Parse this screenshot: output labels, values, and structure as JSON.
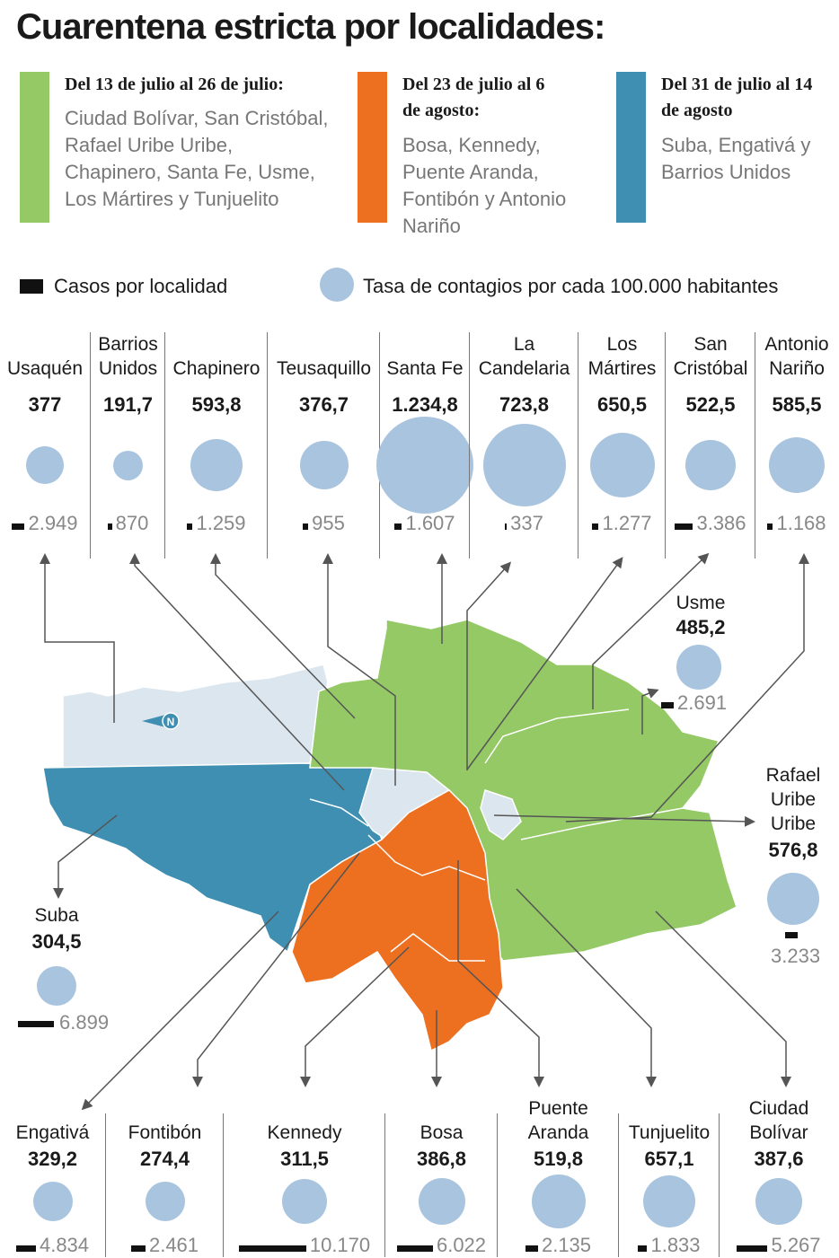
{
  "title": "Cuarentena estricta por localidades:",
  "periods": [
    {
      "date": "Del 13 de julio al 26 de julio:",
      "body": "Ciudad Bolívar, San Cristóbal, Rafael Uribe Uribe, Chapinero, Santa Fe, Usme, Los Mártires y Tunjuelito",
      "color": "#94c966"
    },
    {
      "date": "Del 23 de julio al 6 de agosto:",
      "body": "Bosa, Kennedy, Puente Aranda, Fontibón y Antonio Nariño",
      "color": "#ec7020"
    },
    {
      "date": "Del 31 de julio al 14 de agosto",
      "body": "Suba, Engativá y Barrios Unidos",
      "color": "#3e8fb1"
    }
  ],
  "legend": {
    "cases": "Casos por localidad",
    "rate": "Tasa de contagios por cada 100.000 habitantes"
  },
  "colors": {
    "circle": "#a9c4de",
    "green": "#94c966",
    "orange": "#ec7020",
    "blue": "#3e8fb1",
    "gray": "#dce6ee"
  },
  "top_localities": [
    {
      "name": "Usaquén",
      "rate": "377",
      "cases": "2.949"
    },
    {
      "name": "Barrios Unidos",
      "rate": "191,7",
      "cases": "870"
    },
    {
      "name": "Chapinero",
      "rate": "593,8",
      "cases": "1.259"
    },
    {
      "name": "Teusaquillo",
      "rate": "376,7",
      "cases": "955"
    },
    {
      "name": "Santa Fe",
      "rate": "1.234,8",
      "cases": "1.607"
    },
    {
      "name": "La Candelaria",
      "rate": "723,8",
      "cases": "337"
    },
    {
      "name": "Los Mártires",
      "rate": "650,5",
      "cases": "1.277"
    },
    {
      "name": "San Cristóbal",
      "rate": "522,5",
      "cases": "3.386"
    },
    {
      "name": "Antonio Nariño",
      "rate": "585,5",
      "cases": "1.168"
    }
  ],
  "side_localities": {
    "usme": {
      "name": "Usme",
      "rate": "485,2",
      "cases": "2.691"
    },
    "rafael": {
      "name": "Rafael Uribe Uribe",
      "rate": "576,8",
      "cases": "3.233"
    },
    "suba": {
      "name": "Suba",
      "rate": "304,5",
      "cases": "6.899"
    }
  },
  "bottom_localities": [
    {
      "name": "Engativá",
      "rate": "329,2",
      "cases": "4.834"
    },
    {
      "name": "Fontibón",
      "rate": "274,4",
      "cases": "2.461"
    },
    {
      "name": "Kennedy",
      "rate": "311,5",
      "cases": "10.170"
    },
    {
      "name": "Bosa",
      "rate": "386,8",
      "cases": "6.022"
    },
    {
      "name": "Puente Aranda",
      "rate": "519,8",
      "cases": "2.135"
    },
    {
      "name": "Tunjuelito",
      "rate": "657,1",
      "cases": "1.833"
    },
    {
      "name": "Ciudad Bolívar",
      "rate": "387,6",
      "cases": "5.267"
    }
  ],
  "compass": "N"
}
